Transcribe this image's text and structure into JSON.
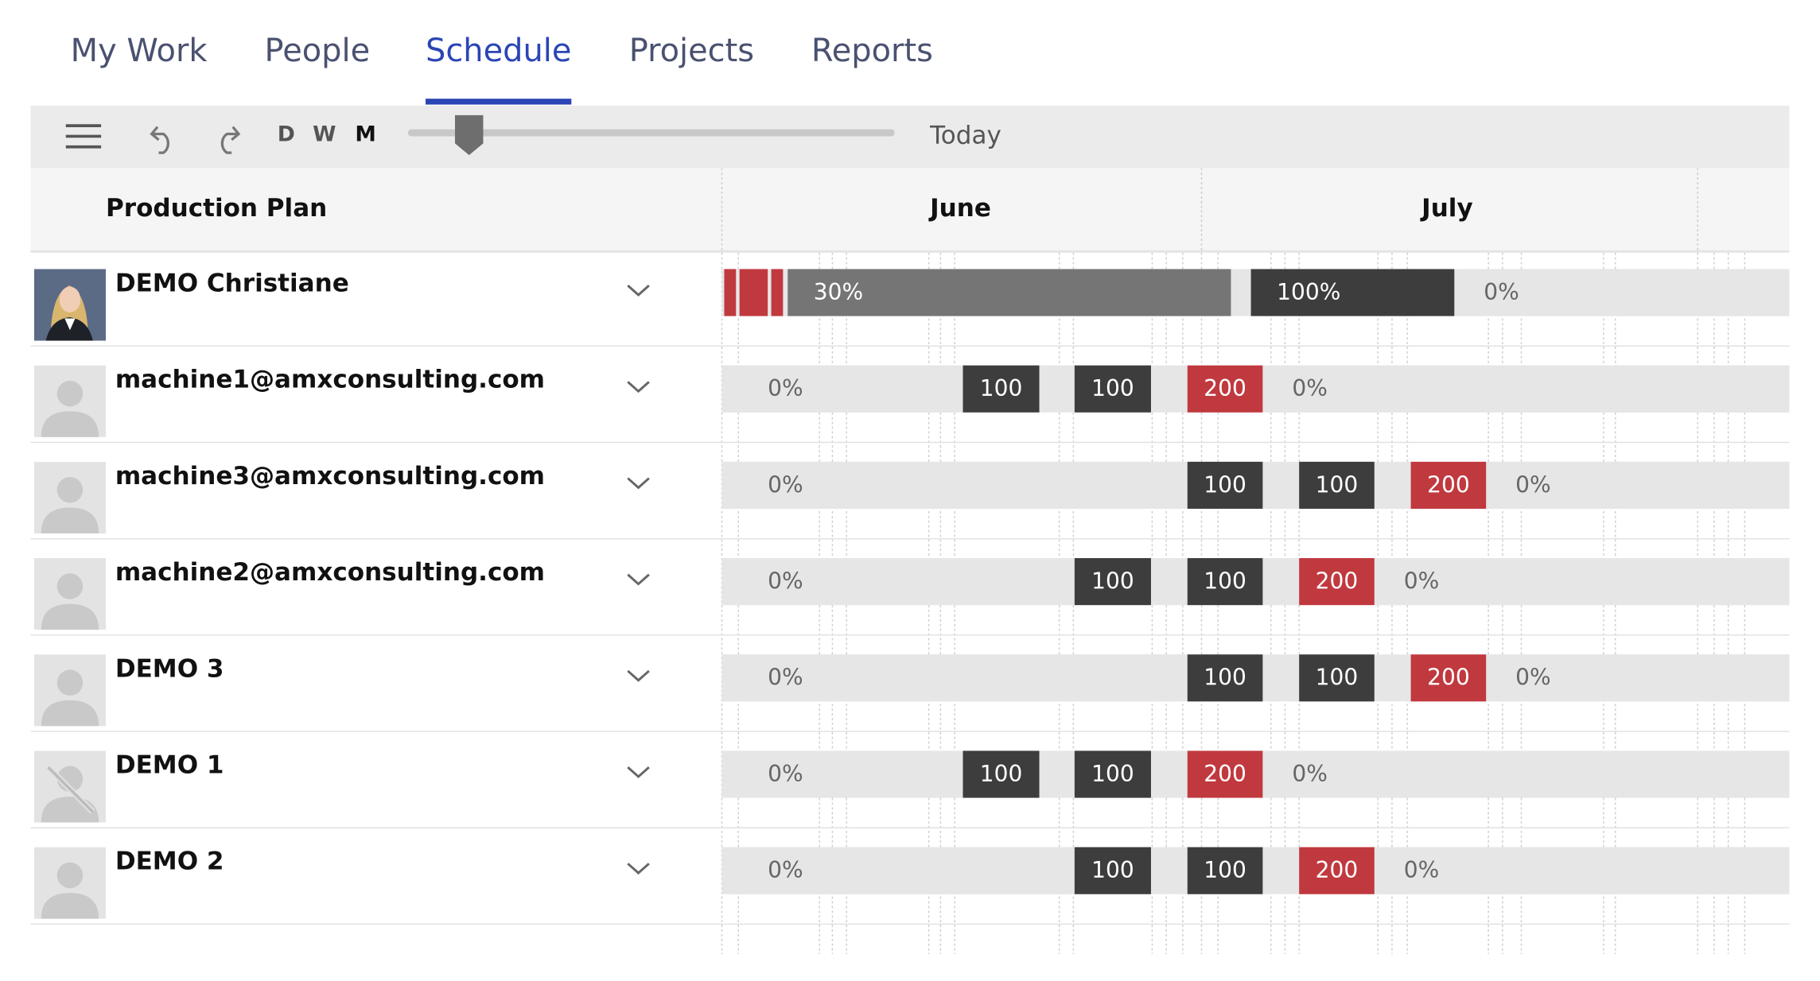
{
  "tabs": [
    "My Work",
    "People",
    "Schedule",
    "Projects",
    "Reports"
  ],
  "active_tab": 2,
  "toolbar": {
    "zoom_levels": [
      "D",
      "W",
      "M"
    ],
    "active_zoom": 2,
    "today": "Today"
  },
  "plan": {
    "title": "Production Plan",
    "months": [
      "June",
      "July"
    ]
  },
  "rows": [
    {
      "name": "DEMO Christiane",
      "segments": [
        {
          "color": "#c0393f"
        },
        {
          "color": "#c0393f"
        },
        {
          "color": "#c0393f"
        },
        {
          "label": "30%",
          "color": "#757575"
        },
        {
          "label": "100%",
          "color": "#3d3d3d"
        },
        {
          "label": "0%",
          "color": "#e6e6e6"
        }
      ]
    },
    {
      "name": "machine1@amxconsulting.com",
      "segments": [
        {
          "label": "0%",
          "color": "#e6e6e6"
        },
        {
          "label": "100",
          "color": "#3d3d3d"
        },
        {
          "label": "100",
          "color": "#3d3d3d"
        },
        {
          "label": "200",
          "color": "#c0393f"
        },
        {
          "label": "0%",
          "color": "#e6e6e6"
        }
      ]
    },
    {
      "name": "machine3@amxconsulting.com",
      "segments": [
        {
          "label": "0%",
          "color": "#e6e6e6"
        },
        {
          "label": "100",
          "color": "#3d3d3d"
        },
        {
          "label": "100",
          "color": "#3d3d3d"
        },
        {
          "label": "200",
          "color": "#c0393f"
        },
        {
          "label": "0%",
          "color": "#e6e6e6"
        }
      ]
    },
    {
      "name": "machine2@amxconsulting.com",
      "segments": [
        {
          "label": "0%",
          "color": "#e6e6e6"
        },
        {
          "label": "100",
          "color": "#3d3d3d"
        },
        {
          "label": "100",
          "color": "#3d3d3d"
        },
        {
          "label": "200",
          "color": "#c0393f"
        },
        {
          "label": "0%",
          "color": "#e6e6e6"
        }
      ]
    },
    {
      "name": "DEMO 3",
      "segments": [
        {
          "label": "0%",
          "color": "#e6e6e6"
        },
        {
          "label": "100",
          "color": "#3d3d3d"
        },
        {
          "label": "100",
          "color": "#3d3d3d"
        },
        {
          "label": "200",
          "color": "#c0393f"
        },
        {
          "label": "0%",
          "color": "#e6e6e6"
        }
      ]
    },
    {
      "name": "DEMO 1",
      "segments": [
        {
          "label": "0%",
          "color": "#e6e6e6"
        },
        {
          "label": "100",
          "color": "#3d3d3d"
        },
        {
          "label": "100",
          "color": "#3d3d3d"
        },
        {
          "label": "200",
          "color": "#c0393f"
        },
        {
          "label": "0%",
          "color": "#e6e6e6"
        }
      ]
    },
    {
      "name": "DEMO 2",
      "segments": [
        {
          "label": "0%",
          "color": "#e6e6e6"
        },
        {
          "label": "100",
          "color": "#3d3d3d"
        },
        {
          "label": "100",
          "color": "#3d3d3d"
        },
        {
          "label": "200",
          "color": "#c0393f"
        },
        {
          "label": "0%",
          "color": "#e6e6e6"
        }
      ]
    }
  ]
}
